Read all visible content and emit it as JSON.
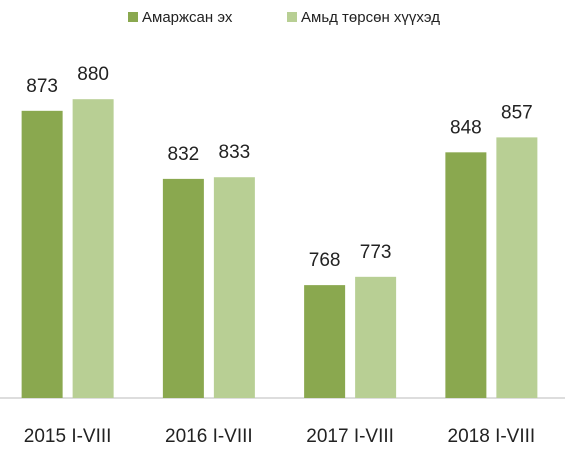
{
  "chart_data": {
    "type": "bar",
    "categories": [
      "2015 I-VIII",
      "2016 I-VIII",
      "2017 I-VIII",
      "2018 I-VIII"
    ],
    "series": [
      {
        "name": "Амаржсан эх",
        "color": "#8aa84f",
        "values": [
          873,
          832,
          768,
          848
        ]
      },
      {
        "name": "Амьд төрсөн хүүхэд",
        "color": "#b8cf94",
        "values": [
          880,
          833,
          773,
          857
        ]
      }
    ],
    "ylim": [
      700,
      900
    ],
    "legend": "top"
  }
}
